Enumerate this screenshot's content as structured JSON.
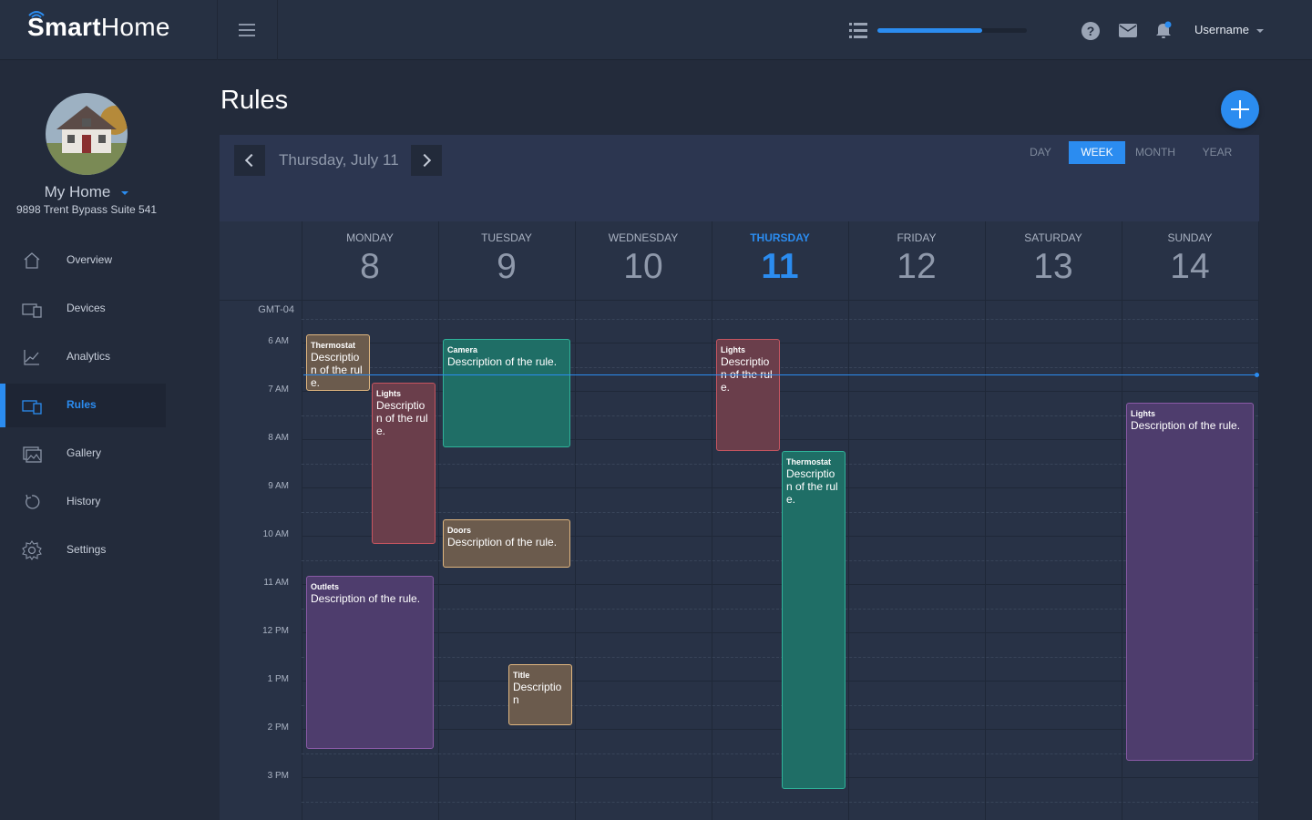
{
  "app": {
    "logo_bold": "Smart",
    "logo_light": "Home",
    "progress_percent": 70
  },
  "header": {
    "username": "Username",
    "icons": [
      "menu-icon",
      "list-icon",
      "help-icon",
      "mail-icon",
      "bell-icon"
    ]
  },
  "sidebar": {
    "home_name": "My Home",
    "home_address": "9898 Trent Bypass Suite 541",
    "items": [
      {
        "label": "Overview",
        "icon": "home-icon"
      },
      {
        "label": "Devices",
        "icon": "devices-icon"
      },
      {
        "label": "Analytics",
        "icon": "analytics-icon"
      },
      {
        "label": "Rules",
        "icon": "rules-icon",
        "active": true
      },
      {
        "label": "Gallery",
        "icon": "gallery-icon"
      },
      {
        "label": "History",
        "icon": "history-icon"
      },
      {
        "label": "Settings",
        "icon": "settings-icon"
      }
    ]
  },
  "page": {
    "title": "Rules",
    "current_date": "Thursday, July 11",
    "views": [
      "DAY",
      "WEEK",
      "MONTH",
      "YEAR"
    ],
    "active_view": "WEEK"
  },
  "calendar": {
    "timezone": "GMT-04",
    "days": [
      {
        "name": "MONDAY",
        "num": "8"
      },
      {
        "name": "TUESDAY",
        "num": "9"
      },
      {
        "name": "WEDNESDAY",
        "num": "10"
      },
      {
        "name": "THURSDAY",
        "num": "11",
        "today": true
      },
      {
        "name": "FRIDAY",
        "num": "12"
      },
      {
        "name": "SATURDAY",
        "num": "13"
      },
      {
        "name": "SUNDAY",
        "num": "14"
      }
    ],
    "hours": [
      "6 AM",
      "7 AM",
      "8 AM",
      "9 AM",
      "10 AM",
      "11 AM",
      "12 PM",
      "1 PM",
      "2 PM",
      "3 PM"
    ],
    "now_time": "6:40 AM",
    "events": [
      {
        "title": "Thermostat",
        "desc": "Description of the rule.",
        "day": 0,
        "start": "5:50 AM",
        "end": "7:00 AM",
        "color": "brown",
        "lane": 0,
        "lanes": 2
      },
      {
        "title": "Lights",
        "desc": "Description of the rule.",
        "day": 0,
        "start": "6:50 AM",
        "end": "10:10 AM",
        "color": "red",
        "lane": 1,
        "lanes": 2
      },
      {
        "title": "Outlets",
        "desc": "Description of the rule.",
        "day": 0,
        "start": "10:50 AM",
        "end": "2:25 PM",
        "color": "purple",
        "lane": 0,
        "lanes": 1
      },
      {
        "title": "Camera",
        "desc": "Description of the rule.",
        "day": 1,
        "start": "5:55 AM",
        "end": "8:10 AM",
        "color": "green",
        "lane": 0,
        "lanes": 1
      },
      {
        "title": "Doors",
        "desc": "Description of the rule.",
        "day": 1,
        "start": "9:40 AM",
        "end": "10:40 AM",
        "color": "brown",
        "lane": 0,
        "lanes": 1
      },
      {
        "title": "Title",
        "desc": "Description",
        "day": 1,
        "start": "12:40 PM",
        "end": "1:55 PM",
        "color": "brown",
        "lane": 1,
        "lanes": 2
      },
      {
        "title": "Lights",
        "desc": "Description of the rule.",
        "day": 3,
        "start": "5:55 AM",
        "end": "8:15 AM",
        "color": "red",
        "lane": 0,
        "lanes": 2
      },
      {
        "title": "Thermostat",
        "desc": "Description of the rule.",
        "day": 3,
        "start": "8:15 AM",
        "end": "3:15 PM",
        "color": "green",
        "lane": 1,
        "lanes": 2
      },
      {
        "title": "Lights",
        "desc": "Description of the rule.",
        "day": 6,
        "start": "7:15 AM",
        "end": "2:40 PM",
        "color": "purple",
        "lane": 0,
        "lanes": 1
      }
    ]
  }
}
